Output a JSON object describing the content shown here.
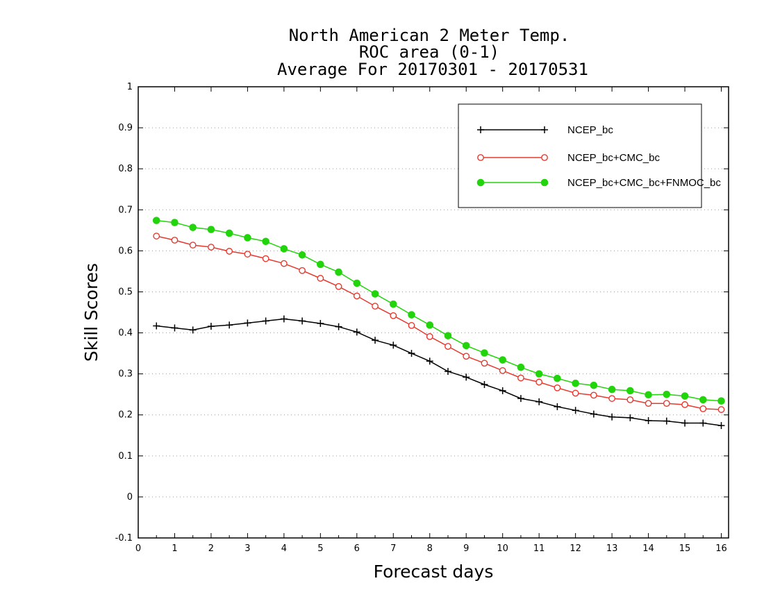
{
  "chart_data": {
    "type": "line",
    "title": [
      "North American 2 Meter Temp.",
      "ROC area (0-1)",
      "Average For 20170301 - 20170531"
    ],
    "xlabel": "Forecast days",
    "ylabel": "Skill Scores",
    "xlim": [
      0,
      16.2
    ],
    "ylim": [
      -0.1,
      1
    ],
    "xticks": [
      0,
      1,
      2,
      3,
      4,
      5,
      6,
      7,
      8,
      9,
      10,
      11,
      12,
      13,
      14,
      15,
      16
    ],
    "yticks": [
      -0.1,
      0,
      0.1,
      0.2,
      0.3,
      0.4,
      0.5,
      0.6,
      0.7,
      0.8,
      0.9,
      1
    ],
    "ytick_labels": [
      "-0.1",
      "0",
      "0.1",
      "0.2",
      "0.3",
      "0.4",
      "0.5",
      "0.6",
      "0.7",
      "0.8",
      "0.9",
      "1"
    ],
    "grid": true,
    "legend_position": "top-right",
    "x": [
      0.5,
      1,
      1.5,
      2,
      2.5,
      3,
      3.5,
      4,
      4.5,
      5,
      5.5,
      6,
      6.5,
      7,
      7.5,
      8,
      8.5,
      9,
      9.5,
      10,
      10.5,
      11,
      11.5,
      12,
      12.5,
      13,
      13.5,
      14,
      14.5,
      15,
      15.5,
      16
    ],
    "series": [
      {
        "name": "NCEP_bc",
        "color": "#000000",
        "marker": "plus",
        "values": [
          0.417,
          0.412,
          0.407,
          0.416,
          0.419,
          0.424,
          0.429,
          0.434,
          0.429,
          0.423,
          0.415,
          0.402,
          0.382,
          0.37,
          0.35,
          0.331,
          0.306,
          0.292,
          0.274,
          0.259,
          0.24,
          0.232,
          0.22,
          0.211,
          0.202,
          0.195,
          0.193,
          0.186,
          0.185,
          0.18,
          0.18,
          0.174
        ]
      },
      {
        "name": "NCEP_bc+CMC_bc",
        "color": "#e8382e",
        "marker": "open-circle",
        "values": [
          0.636,
          0.626,
          0.614,
          0.609,
          0.599,
          0.592,
          0.581,
          0.569,
          0.552,
          0.533,
          0.513,
          0.49,
          0.465,
          0.442,
          0.418,
          0.391,
          0.367,
          0.343,
          0.326,
          0.308,
          0.29,
          0.28,
          0.266,
          0.253,
          0.248,
          0.24,
          0.237,
          0.228,
          0.228,
          0.225,
          0.215,
          0.213
        ]
      },
      {
        "name": "NCEP_bc+CMC_bc+FNMOC_bc",
        "color": "#22d40b",
        "marker": "filled-circle",
        "values": [
          0.674,
          0.669,
          0.657,
          0.652,
          0.643,
          0.632,
          0.623,
          0.605,
          0.59,
          0.567,
          0.548,
          0.521,
          0.495,
          0.47,
          0.444,
          0.419,
          0.393,
          0.369,
          0.351,
          0.334,
          0.316,
          0.3,
          0.289,
          0.277,
          0.272,
          0.262,
          0.259,
          0.249,
          0.25,
          0.246,
          0.237,
          0.234
        ]
      }
    ]
  }
}
